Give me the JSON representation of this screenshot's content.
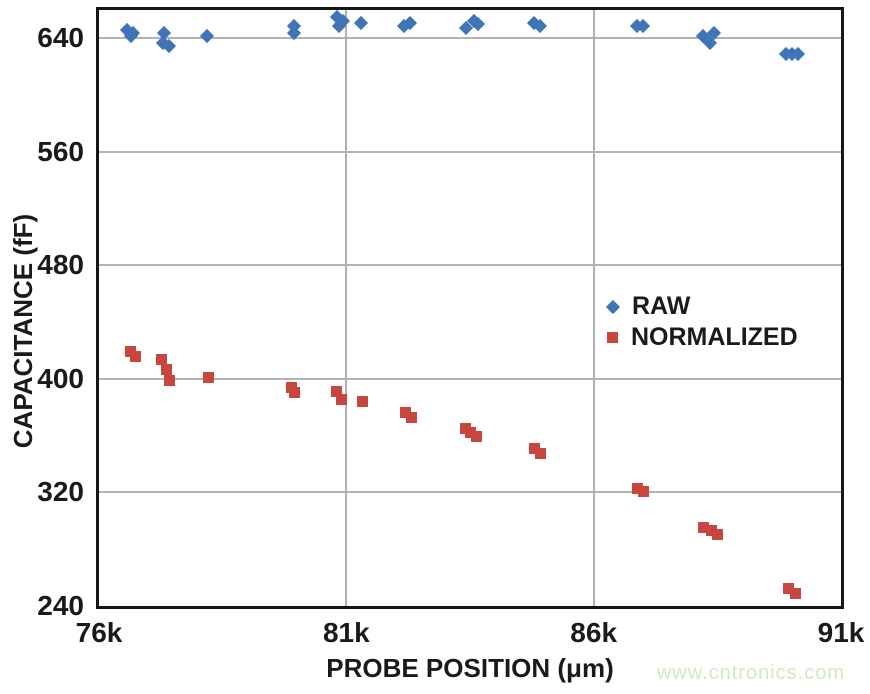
{
  "watermark": {
    "text": "www.cntronics.com",
    "color": "#cfeabf"
  },
  "chart_data": {
    "type": "scatter",
    "title": "",
    "xlabel": "PROBE POSITION (μm)",
    "ylabel": "CAPACITANCE (fF)",
    "xlim": [
      76000,
      91000
    ],
    "ylim": [
      240,
      660
    ],
    "grid": {
      "y_gridlines": [
        640,
        560,
        480,
        400,
        320
      ],
      "x_gridlines": [
        81000,
        86000
      ]
    },
    "x_ticks": [
      {
        "value": 76000,
        "label": "76k"
      },
      {
        "value": 81000,
        "label": "81k"
      },
      {
        "value": 86000,
        "label": "86k"
      },
      {
        "value": 91000,
        "label": "91k"
      }
    ],
    "y_ticks": [
      {
        "value": 640,
        "label": "640"
      },
      {
        "value": 560,
        "label": "560"
      },
      {
        "value": 480,
        "label": "480"
      },
      {
        "value": 400,
        "label": "400"
      },
      {
        "value": 320,
        "label": "320"
      },
      {
        "value": 240,
        "label": "240"
      }
    ],
    "legend": {
      "position": "right-middle",
      "entries": [
        {
          "label": "RAW",
          "marker": "diamond",
          "color": "#4074b8"
        },
        {
          "label": "NORMALIZED",
          "marker": "square",
          "color": "#c7463e"
        }
      ]
    },
    "series": [
      {
        "name": "RAW",
        "marker": "diamond",
        "color": "#4074b8",
        "points": [
          [
            76570,
            646
          ],
          [
            76690,
            644
          ],
          [
            76650,
            641.5
          ],
          [
            77310,
            644
          ],
          [
            77290,
            636.5
          ],
          [
            77410,
            634.5
          ],
          [
            78180,
            642
          ],
          [
            79940,
            648.5
          ],
          [
            79940,
            643.5
          ],
          [
            80810,
            655
          ],
          [
            80930,
            652
          ],
          [
            80850,
            648.5
          ],
          [
            81300,
            650.5
          ],
          [
            82170,
            649
          ],
          [
            82290,
            651
          ],
          [
            83420,
            647
          ],
          [
            83580,
            652
          ],
          [
            83660,
            650
          ],
          [
            84790,
            650.5
          ],
          [
            84910,
            649
          ],
          [
            86880,
            649
          ],
          [
            87000,
            649
          ],
          [
            88210,
            642
          ],
          [
            88430,
            643.5
          ],
          [
            88350,
            637
          ],
          [
            89890,
            629
          ],
          [
            90010,
            629
          ],
          [
            90130,
            629
          ]
        ]
      },
      {
        "name": "NORMALIZED",
        "marker": "square",
        "color": "#c7463e",
        "points": [
          [
            76630,
            419
          ],
          [
            76730,
            416
          ],
          [
            77270,
            414
          ],
          [
            77360,
            406.5
          ],
          [
            77420,
            399
          ],
          [
            78220,
            401
          ],
          [
            79900,
            394
          ],
          [
            79960,
            390.5
          ],
          [
            80810,
            391
          ],
          [
            80910,
            385.5
          ],
          [
            81320,
            384
          ],
          [
            82190,
            376.5
          ],
          [
            82310,
            373
          ],
          [
            83400,
            365
          ],
          [
            83520,
            362.5
          ],
          [
            83640,
            359.5
          ],
          [
            84800,
            351
          ],
          [
            84920,
            347.5
          ],
          [
            86880,
            323
          ],
          [
            87000,
            321
          ],
          [
            88230,
            295.5
          ],
          [
            88380,
            293
          ],
          [
            88500,
            290.5
          ],
          [
            89930,
            252.5
          ],
          [
            90090,
            248.5
          ]
        ]
      }
    ]
  }
}
